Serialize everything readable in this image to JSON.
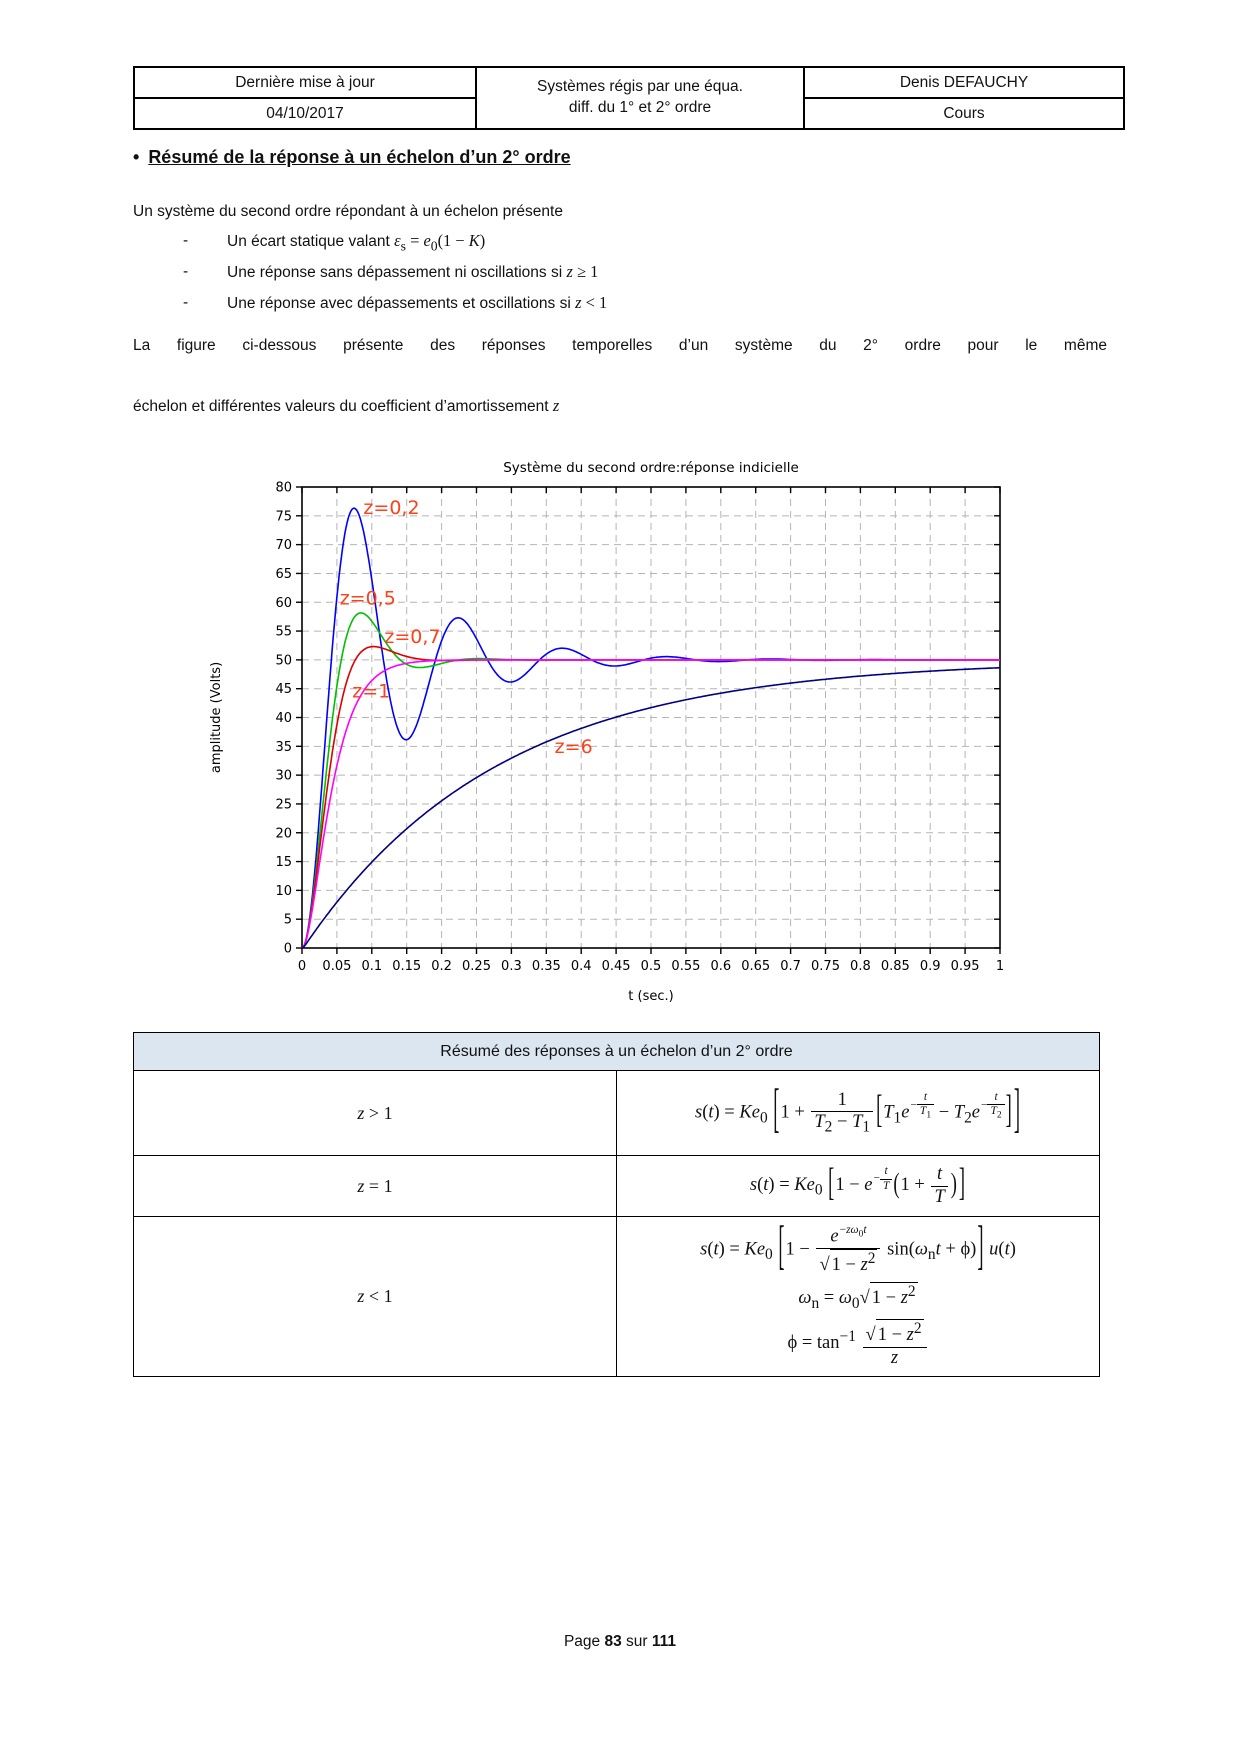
{
  "header_table": {
    "col1_row1": "Dernière mise à jour",
    "col1_row2": "04/10/2017",
    "col2_line1": "Systèmes régis par une équa.",
    "col2_line2": "diff. du 1° et 2° ordre",
    "col3_row1": "Denis DEFAUCHY",
    "col3_row2": "Cours"
  },
  "section": {
    "bullet_char": "•",
    "heading": "Résumé de la réponse à un échelon d’un 2° ordre",
    "intro": "Un système du second ordre répondant à un échelon présente",
    "dash_char": "-",
    "bullets": [
      "Un écart statique valant <span class='m'><i>ε</i><sub>s</sub> = <i>e</i><sub>0</sub>(1 − <i>K</i>)</span>",
      "Une réponse sans dépassement ni oscillations si <span class='m'><i>z</i> ≥ 1</span>",
      "Une réponse avec dépassements et oscillations si <span class='m'><i>z</i> &lt; 1</span>"
    ],
    "figure_intro_line1": "La figure ci-dessous présente des réponses temporelles d’un système du 2° ordre pour le même",
    "figure_intro_line2": "échelon et différentes valeurs du coefficient d’amortissement <span class='m'><i>z</i></span>"
  },
  "chart_data": {
    "type": "line",
    "title": "Système du second ordre:réponse indicielle",
    "xlabel": "t (sec.)",
    "ylabel": "amplitude (Volts)",
    "xlim": [
      0,
      1
    ],
    "ylim": [
      0,
      80
    ],
    "xtick_step": 0.05,
    "ytick_step": 5,
    "grid": true,
    "legend_position": "labels-on-plot",
    "final_value": 50,
    "omega0": 43,
    "label_color": "#ff4019",
    "series": [
      {
        "name": "z=0,2",
        "z": 0.2,
        "color": "#0000ff",
        "label_pos": [
          0.088,
          75.3
        ],
        "key_points": [
          [
            0,
            0
          ],
          [
            0.073,
            76.4
          ],
          [
            0.145,
            36.2
          ],
          [
            0.218,
            57.3
          ],
          [
            0.29,
            46.2
          ],
          [
            0.363,
            52.0
          ],
          [
            0.435,
            49.0
          ],
          [
            0.51,
            50.6
          ],
          [
            0.58,
            49.7
          ],
          [
            1,
            50
          ]
        ]
      },
      {
        "name": "z=0,5",
        "z": 0.5,
        "color": "#00c000",
        "label_pos": [
          0.054,
          59.6
        ],
        "key_points": [
          [
            0,
            0
          ],
          [
            0.085,
            58.1
          ],
          [
            0.17,
            48.7
          ],
          [
            0.26,
            50.2
          ],
          [
            1,
            50
          ]
        ]
      },
      {
        "name": "z=0,7",
        "z": 0.7,
        "color": "#dd0000",
        "label_pos": [
          0.118,
          52.9
        ],
        "key_points": [
          [
            0,
            0
          ],
          [
            0.105,
            52.2
          ],
          [
            0.2,
            49.9
          ],
          [
            1,
            50
          ]
        ]
      },
      {
        "name": "z=1",
        "z": 1,
        "color": "#ff00ff",
        "label_pos": [
          0.072,
          43.5
        ],
        "key_points": [
          [
            0,
            0
          ],
          [
            0.05,
            32
          ],
          [
            0.1,
            46.4
          ],
          [
            0.15,
            49
          ],
          [
            0.3,
            50
          ],
          [
            1,
            50
          ]
        ]
      },
      {
        "name": "z=6",
        "z": 6,
        "color": "#000080",
        "label_pos": [
          0.362,
          33.8
        ],
        "key_points": [
          [
            0,
            0
          ],
          [
            0.1,
            14.5
          ],
          [
            0.2,
            26
          ],
          [
            0.3,
            33
          ],
          [
            0.4,
            38
          ],
          [
            0.5,
            41.7
          ],
          [
            0.6,
            44.2
          ],
          [
            0.7,
            46
          ],
          [
            0.8,
            47.2
          ],
          [
            0.9,
            48
          ],
          [
            1,
            48.6
          ]
        ]
      }
    ]
  },
  "summary_table": {
    "title": "Résumé des réponses à un échelon d’un 2° ordre",
    "rows": [
      {
        "condition_html": "<i>z</i> &gt; 1",
        "formula_html": "<i>s</i>(<i>t</i>) = <i>Ke</i><sub>0</sub> <span class='bk bkL'>[</span>1 + <span class='fr'><span class='n'>1</span><span class='d'><i>T</i><sub>2</sub> − <i>T</i><sub>1</sub></span></span><span class='bk bkM'>[</span><i>T</i><sub>1</sub><i>e</i><span class='ex'>−<span class='fr'><span class='n'><i>t</i></span><span class='d'><i>T</i><sub>1</sub></span></span></span> − <i>T</i><sub>2</sub><i>e</i><span class='ex'>−<span class='fr'><span class='n'><i>t</i></span><span class='d'><i>T</i><sub>2</sub></span></span></span><span class='bk bkM'>]</span><span class='bk bkL'>]</span>"
      },
      {
        "condition_html": "<i>z</i> = 1",
        "formula_html": "<i>s</i>(<i>t</i>) = <i>Ke</i><sub>0</sub> <span class='bk bkM'>[</span>1 − <i>e</i><span class='ex'>−<span class='fr'><span class='n'><i>t</i></span><span class='d'><i>T</i></span></span></span><span class='bk bkP'>(</span>1 + <span class='fr'><span class='n'><i>t</i></span><span class='d'><i>T</i></span></span><span class='bk bkP'>)</span><span class='bk bkM'>]</span>"
      },
      {
        "condition_html": "<i>z</i> &lt; 1",
        "formulas": [
          "<i>s</i>(<i>t</i>) = <i>Ke</i><sub>0</sub> <span class='bk bkL'>[</span>1 − <span class='fr'><span class='n'><i>e</i><span class='ex'>−<i>zω</i><sub>0</sub><i>t</i></span></span><span class='d'><span class='rt'><span class='rs'>√</span><span class='rd'>1 − <i>z</i><sup>2</sup></span></span></span></span> sin(<i>ω</i><sub>n</sub><i>t</i> + ϕ)<span class='bk bkL'>]</span> <i>u</i>(<i>t</i>)",
          "<i>ω</i><sub>n</sub> = <i>ω</i><sub>0</sub><span class='rt'><span class='rs'>√</span><span class='rd'>1 − <i>z</i><sup>2</sup></span></span>",
          "ϕ = tan<sup>−1</sup> <span class='fr'><span class='n'><span class='rt'><span class='rs'>√</span><span class='rd'>1 − <i>z</i><sup>2</sup></span></span></span><span class='d'><i>z</i></span></span>"
        ]
      }
    ]
  },
  "footer": {
    "prefix": "Page ",
    "page": "83",
    "separator": " sur ",
    "total": "111"
  }
}
